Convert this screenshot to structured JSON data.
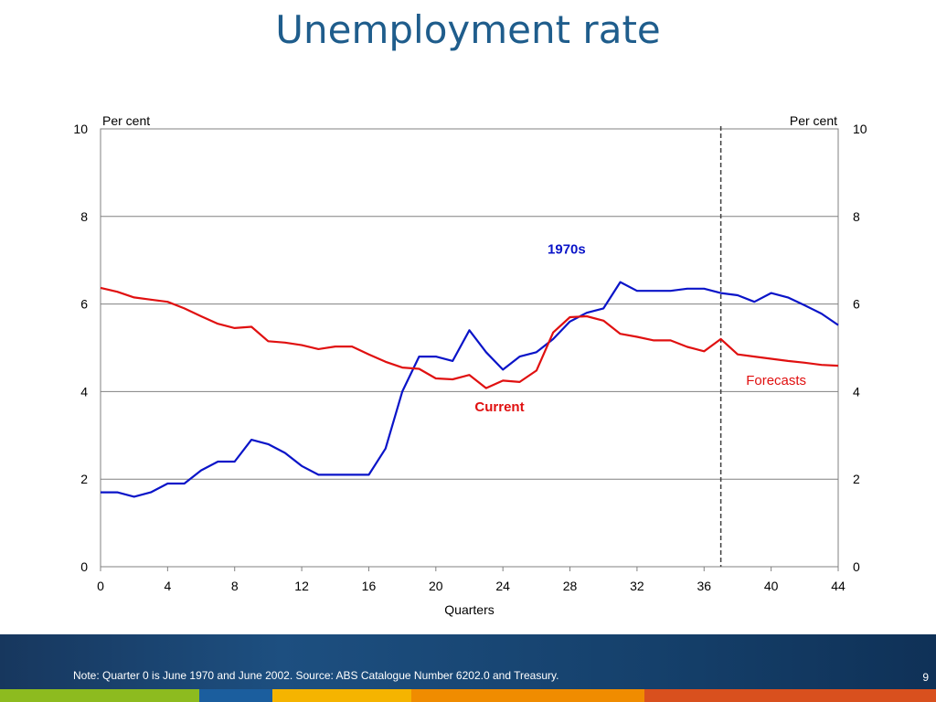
{
  "slide": {
    "title": "Unemployment rate",
    "note": "Note: Quarter 0 is June 1970 and June 2002. Source: ABS Catalogue Number 6202.0 and Treasury.",
    "page_number": "9"
  },
  "chart_data": {
    "type": "line",
    "title": "",
    "xlabel": "Quarters",
    "ylabel_left": "Per cent",
    "ylabel_right": "Per cent",
    "xlim": [
      0,
      44
    ],
    "ylim": [
      0,
      10
    ],
    "xticks": [
      0,
      4,
      8,
      12,
      16,
      20,
      24,
      28,
      32,
      36,
      40,
      44
    ],
    "yticks": [
      0,
      2,
      4,
      6,
      8,
      10
    ],
    "grid": "horizontal",
    "forecast_start_quarter": 37,
    "series": [
      {
        "name": "1970s",
        "color": "#0a14c8",
        "x": [
          0,
          1,
          2,
          3,
          4,
          5,
          6,
          7,
          8,
          9,
          10,
          11,
          12,
          13,
          14,
          15,
          16,
          17,
          18,
          19,
          20,
          21,
          22,
          23,
          24,
          25,
          26,
          27,
          28,
          29,
          30,
          31,
          32,
          33,
          34,
          35,
          36,
          37,
          38,
          39,
          40,
          41,
          42,
          43,
          44
        ],
        "values": [
          1.7,
          1.7,
          1.6,
          1.7,
          1.9,
          1.9,
          2.2,
          2.4,
          2.4,
          2.9,
          2.8,
          2.6,
          2.3,
          2.1,
          2.1,
          2.1,
          2.1,
          2.7,
          4.0,
          4.8,
          4.8,
          4.7,
          5.4,
          4.9,
          4.5,
          4.8,
          4.9,
          5.2,
          5.6,
          5.8,
          5.9,
          6.5,
          6.3,
          6.3,
          6.3,
          6.35,
          6.35,
          6.25,
          6.2,
          6.05,
          6.25,
          6.15,
          5.97,
          5.78,
          5.52
        ]
      },
      {
        "name": "Current",
        "color": "#e01010",
        "x": [
          0,
          1,
          2,
          3,
          4,
          5,
          6,
          7,
          8,
          9,
          10,
          11,
          12,
          13,
          14,
          15,
          16,
          17,
          18,
          19,
          20,
          21,
          22,
          23,
          24,
          25,
          26,
          27,
          28,
          29,
          30,
          31,
          32,
          33,
          34,
          35,
          36,
          37,
          38,
          39,
          40,
          41,
          42,
          43,
          44
        ],
        "values": [
          6.37,
          6.28,
          6.15,
          6.1,
          6.05,
          5.9,
          5.72,
          5.55,
          5.45,
          5.48,
          5.15,
          5.12,
          5.06,
          4.97,
          5.03,
          5.03,
          4.85,
          4.68,
          4.55,
          4.52,
          4.3,
          4.28,
          4.38,
          4.08,
          4.25,
          4.22,
          4.48,
          5.35,
          5.7,
          5.72,
          5.62,
          5.32,
          5.25,
          5.17,
          5.17,
          5.02,
          4.92,
          5.2,
          4.85,
          4.8,
          4.75,
          4.7,
          4.66,
          4.61,
          4.59
        ]
      }
    ],
    "annotations": [
      {
        "text": "1970s",
        "color": "#0a14c8",
        "bold": true,
        "x": 27.8,
        "y": 7.15
      },
      {
        "text": "Current",
        "color": "#e01010",
        "bold": true,
        "x": 23.8,
        "y": 3.55
      },
      {
        "text": "Forecasts",
        "color": "#e01010",
        "bold": false,
        "x": 40.3,
        "y": 4.15
      }
    ]
  },
  "footer_stripe": [
    "#8dbb1f",
    "#1b5e9e",
    "#f5b400",
    "#f08c00",
    "#d9501e"
  ]
}
